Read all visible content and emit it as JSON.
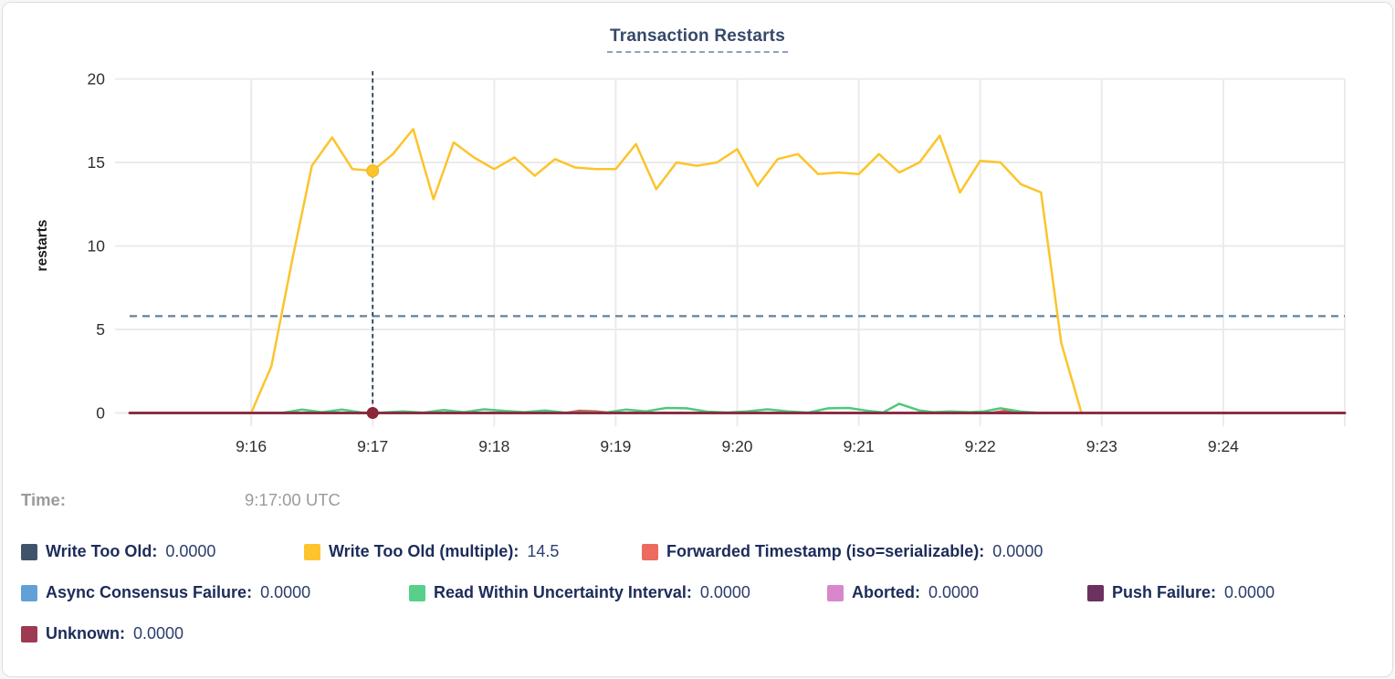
{
  "title": "Transaction Restarts",
  "time_row": {
    "label": "Time:",
    "value": "9:17:00 UTC"
  },
  "chart_data": {
    "type": "line",
    "title": "Transaction Restarts",
    "xlabel": "",
    "ylabel": "restarts",
    "ylim": [
      0,
      20
    ],
    "y_ticks": [
      0,
      5,
      10,
      15,
      20
    ],
    "x_tick_labels": [
      "9:16",
      "9:17",
      "9:18",
      "9:19",
      "9:20",
      "9:21",
      "9:22",
      "9:23",
      "9:24"
    ],
    "x_tick_seconds": [
      60,
      120,
      180,
      240,
      300,
      360,
      420,
      480,
      540
    ],
    "x_domain_seconds": [
      0,
      600
    ],
    "x_domain_labels": [
      "9:15:00",
      "9:25:00"
    ],
    "grid": true,
    "average_line_value": 5.8,
    "crosshair": {
      "time_label": "9:17:00 UTC",
      "time_seconds": 120,
      "highlight_series": "Write Too Old (multiple)",
      "highlight_value": 14.5
    },
    "series": [
      {
        "name": "Write Too Old",
        "color": "#41526b",
        "line_color": "#41526b",
        "cursor_value": "0.0000",
        "points": [
          [
            0,
            0
          ],
          [
            600,
            0
          ]
        ]
      },
      {
        "name": "Write Too Old (multiple)",
        "color": "#fdc42c",
        "line_color": "#fcc42c",
        "cursor_value": "14.5",
        "points": [
          [
            60,
            0
          ],
          [
            70,
            2.8
          ],
          [
            80,
            9.0
          ],
          [
            90,
            14.8
          ],
          [
            100,
            16.5
          ],
          [
            110,
            14.6
          ],
          [
            120,
            14.5
          ],
          [
            130,
            15.5
          ],
          [
            140,
            17.0
          ],
          [
            150,
            12.8
          ],
          [
            160,
            16.2
          ],
          [
            170,
            15.3
          ],
          [
            180,
            14.6
          ],
          [
            190,
            15.3
          ],
          [
            200,
            14.2
          ],
          [
            210,
            15.2
          ],
          [
            220,
            14.7
          ],
          [
            230,
            14.6
          ],
          [
            240,
            14.6
          ],
          [
            250,
            16.1
          ],
          [
            260,
            13.4
          ],
          [
            270,
            15.0
          ],
          [
            280,
            14.8
          ],
          [
            290,
            15.0
          ],
          [
            300,
            15.8
          ],
          [
            310,
            13.6
          ],
          [
            320,
            15.2
          ],
          [
            330,
            15.5
          ],
          [
            340,
            14.3
          ],
          [
            350,
            14.4
          ],
          [
            360,
            14.3
          ],
          [
            370,
            15.5
          ],
          [
            380,
            14.4
          ],
          [
            390,
            15.0
          ],
          [
            400,
            16.6
          ],
          [
            410,
            13.2
          ],
          [
            420,
            15.1
          ],
          [
            430,
            15.0
          ],
          [
            440,
            13.7
          ],
          [
            450,
            13.2
          ],
          [
            460,
            4.2
          ],
          [
            470,
            0
          ]
        ]
      },
      {
        "name": "Forwarded Timestamp (iso=serializable)",
        "color": "#ec6a5e",
        "line_color": "#df4a43",
        "cursor_value": "0.0000",
        "points": [
          [
            0,
            0
          ],
          [
            215,
            0
          ],
          [
            222,
            0.13
          ],
          [
            230,
            0.1
          ],
          [
            238,
            0
          ],
          [
            425,
            0
          ],
          [
            432,
            0.12
          ],
          [
            440,
            0
          ],
          [
            600,
            0
          ]
        ]
      },
      {
        "name": "Async Consensus Failure",
        "color": "#62a1d8",
        "line_color": "#62a1d8",
        "cursor_value": "0.0000",
        "points": [
          [
            0,
            0
          ],
          [
            600,
            0
          ]
        ]
      },
      {
        "name": "Read Within Uncertainty Interval",
        "color": "#57d089",
        "line_color": "#4dc97c",
        "cursor_value": "0.0000",
        "points": [
          [
            0,
            0
          ],
          [
            75,
            0
          ],
          [
            85,
            0.2
          ],
          [
            95,
            0.05
          ],
          [
            105,
            0.2
          ],
          [
            115,
            0.02
          ],
          [
            125,
            0.03
          ],
          [
            135,
            0.1
          ],
          [
            145,
            0.02
          ],
          [
            155,
            0.18
          ],
          [
            165,
            0.05
          ],
          [
            175,
            0.22
          ],
          [
            185,
            0.12
          ],
          [
            195,
            0.05
          ],
          [
            205,
            0.15
          ],
          [
            215,
            0.02
          ],
          [
            225,
            0.05
          ],
          [
            235,
            0.02
          ],
          [
            245,
            0.2
          ],
          [
            255,
            0.1
          ],
          [
            265,
            0.3
          ],
          [
            275,
            0.28
          ],
          [
            285,
            0.08
          ],
          [
            295,
            0.03
          ],
          [
            305,
            0.1
          ],
          [
            315,
            0.22
          ],
          [
            325,
            0.1
          ],
          [
            335,
            0.02
          ],
          [
            345,
            0.28
          ],
          [
            355,
            0.3
          ],
          [
            365,
            0.12
          ],
          [
            372,
            0.03
          ],
          [
            380,
            0.55
          ],
          [
            390,
            0.15
          ],
          [
            397,
            0.05
          ],
          [
            405,
            0.1
          ],
          [
            415,
            0.05
          ],
          [
            422,
            0.1
          ],
          [
            430,
            0.28
          ],
          [
            440,
            0.08
          ],
          [
            450,
            0
          ],
          [
            600,
            0
          ]
        ]
      },
      {
        "name": "Aborted",
        "color": "#d987cc",
        "line_color": "#d987cc",
        "cursor_value": "0.0000",
        "points": [
          [
            0,
            0
          ],
          [
            600,
            0
          ]
        ]
      },
      {
        "name": "Push Failure",
        "color": "#6c3061",
        "line_color": "#6c3061",
        "cursor_value": "0.0000",
        "points": [
          [
            0,
            0
          ],
          [
            600,
            0
          ]
        ]
      },
      {
        "name": "Unknown",
        "color": "#9d3b53",
        "line_color": "#8a2638",
        "cursor_value": "0.0000",
        "points": [
          [
            0,
            0
          ],
          [
            600,
            0
          ]
        ]
      }
    ]
  },
  "legend": {
    "rows": [
      [
        {
          "name": "write-too-old",
          "label": "Write Too Old:",
          "value": "0.0000",
          "color": "#41526b"
        },
        {
          "name": "write-too-old-multiple",
          "label": "Write Too Old (multiple):",
          "value": "14.5",
          "color": "#fdc42c"
        },
        {
          "name": "forwarded-timestamp",
          "label": "Forwarded Timestamp (iso=serializable):",
          "value": "0.0000",
          "color": "#ec6a5e"
        }
      ],
      [
        {
          "name": "async-consensus-failure",
          "label": "Async Consensus Failure:",
          "value": "0.0000",
          "color": "#62a1d8"
        },
        {
          "name": "read-within-uncertainty-interval",
          "label": "Read Within Uncertainty Interval:",
          "value": "0.0000",
          "color": "#57d089"
        },
        {
          "name": "aborted",
          "label": "Aborted:",
          "value": "0.0000",
          "color": "#d987cc"
        },
        {
          "name": "push-failure",
          "label": "Push Failure:",
          "value": "0.0000",
          "color": "#6c3061"
        }
      ],
      [
        {
          "name": "unknown",
          "label": "Unknown:",
          "value": "0.0000",
          "color": "#9d3b53"
        }
      ]
    ]
  },
  "colors": {
    "title": "#35496b",
    "gridline": "#ebebeb",
    "axis_text": "#2f2f2f",
    "average_line": "#5e82a0",
    "crosshair": "#243d52",
    "legend_label": "#1c2c5a",
    "legend_value": "#2c3c6e",
    "time_text": "#9b9b9b"
  }
}
